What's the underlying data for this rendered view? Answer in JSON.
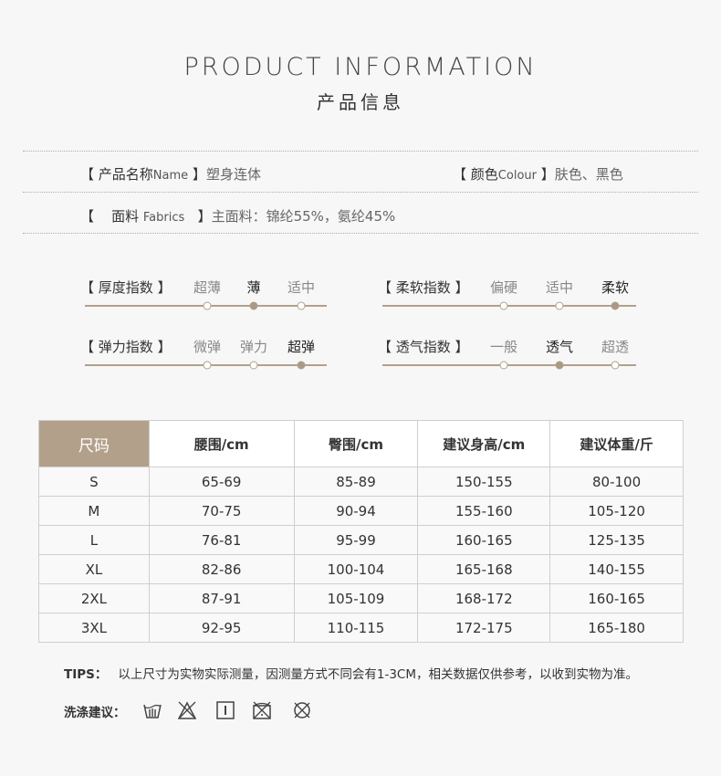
{
  "header": {
    "title_en": "PRODUCT INFORMATION",
    "title_cn": "产品信息"
  },
  "info": {
    "name": {
      "label": "产品名称",
      "label_en": "Name",
      "value": "塑身连体"
    },
    "color": {
      "label": "颜色",
      "label_en": "Colour",
      "value": "肤色、黑色"
    },
    "fabric": {
      "label": "面料",
      "label_en": "Fabrics",
      "value": "主面料：锦纶55%，氨纶45%"
    }
  },
  "scales": [
    {
      "label": "厚度指数",
      "options": [
        "超薄",
        "薄",
        "适中"
      ],
      "selected": 1
    },
    {
      "label": "柔软指数",
      "options": [
        "偏硬",
        "适中",
        "柔软"
      ],
      "selected": 2
    },
    {
      "label": "弹力指数",
      "options": [
        "微弹",
        "弹力",
        "超弹"
      ],
      "selected": 2
    },
    {
      "label": "透气指数",
      "options": [
        "一般",
        "透气",
        "超透"
      ],
      "selected": 1
    }
  ],
  "size_table": {
    "headers": [
      "尺码",
      "腰围/cm",
      "臀围/cm",
      "建议身高/cm",
      "建议体重/斤"
    ],
    "rows": [
      [
        "S",
        "65-69",
        "85-89",
        "150-155",
        "80-100"
      ],
      [
        "M",
        "70-75",
        "90-94",
        "155-160",
        "105-120"
      ],
      [
        "L",
        "76-81",
        "95-99",
        "160-165",
        "125-135"
      ],
      [
        "XL",
        "82-86",
        "100-104",
        "165-168",
        "140-155"
      ],
      [
        "2XL",
        "87-91",
        "105-109",
        "168-172",
        "160-165"
      ],
      [
        "3XL",
        "92-95",
        "110-115",
        "172-175",
        "165-180"
      ]
    ]
  },
  "tips": {
    "label": "TIPS：",
    "text": "以上尺寸为实物实际测量，因测量方式不同会有1-3CM，相关数据仅供参考，以收到实物为准。"
  },
  "wash": {
    "label": "洗涤建议：",
    "icons": [
      "hand-wash-icon",
      "no-bleach-icon",
      "line-dry-icon",
      "no-tumble-dry-icon",
      "no-dry-clean-icon"
    ]
  },
  "colors": {
    "accent": "#b3a08a",
    "background": "#f7f7f7"
  }
}
